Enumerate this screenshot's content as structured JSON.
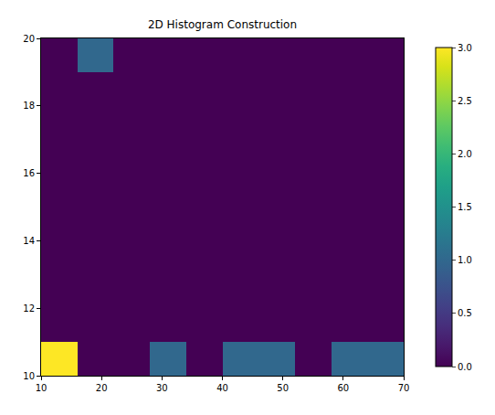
{
  "chart_data": {
    "type": "heatmap",
    "title": "2D Histogram Construction",
    "x_bins": [
      10,
      16,
      22,
      28,
      34,
      40,
      46,
      52,
      58,
      64,
      70
    ],
    "y_bins": [
      10,
      11,
      12,
      13,
      14,
      15,
      16,
      17,
      18,
      19,
      20
    ],
    "counts": [
      [
        3,
        0,
        0,
        1,
        0,
        1,
        1,
        0,
        1,
        1
      ],
      [
        0,
        0,
        0,
        0,
        0,
        0,
        0,
        0,
        0,
        0
      ],
      [
        0,
        0,
        0,
        0,
        0,
        0,
        0,
        0,
        0,
        0
      ],
      [
        0,
        0,
        0,
        0,
        0,
        0,
        0,
        0,
        0,
        0
      ],
      [
        0,
        0,
        0,
        0,
        0,
        0,
        0,
        0,
        0,
        0
      ],
      [
        0,
        0,
        0,
        0,
        0,
        0,
        0,
        0,
        0,
        0
      ],
      [
        0,
        0,
        0,
        0,
        0,
        0,
        0,
        0,
        0,
        0
      ],
      [
        0,
        0,
        0,
        0,
        0,
        0,
        0,
        0,
        0,
        0
      ],
      [
        0,
        0,
        0,
        0,
        0,
        0,
        0,
        0,
        0,
        0
      ],
      [
        0,
        1,
        0,
        0,
        0,
        0,
        0,
        0,
        0,
        0
      ]
    ],
    "xlim": [
      10,
      70
    ],
    "xticks": [
      10,
      20,
      30,
      40,
      50,
      60,
      70
    ],
    "ylim": [
      10,
      20
    ],
    "yticks": [
      10,
      12,
      14,
      16,
      18,
      20
    ],
    "colorbar_range": [
      0,
      3
    ],
    "colorbar_ticks": [
      {
        "value": 0,
        "label": "0.0"
      },
      {
        "value": 0.5,
        "label": "0.5"
      },
      {
        "value": 1,
        "label": "1.0"
      },
      {
        "value": 1.5,
        "label": "1.5"
      },
      {
        "value": 2,
        "label": "2.0"
      },
      {
        "value": 2.5,
        "label": "2.5"
      },
      {
        "value": 3,
        "label": "3.0"
      }
    ],
    "grid": false
  }
}
